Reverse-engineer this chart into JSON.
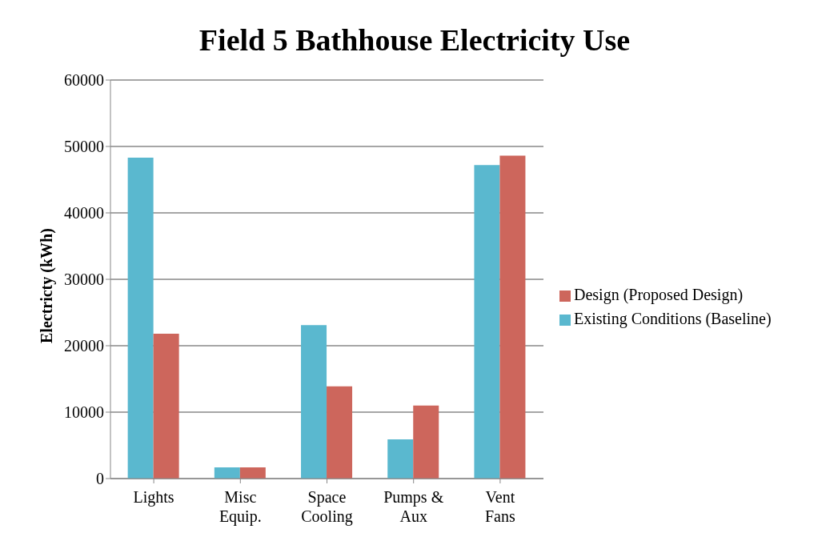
{
  "chart_data": {
    "type": "bar",
    "title": "Field 5 Bathhouse Electricity Use",
    "ylabel": "Electricty (kWh)",
    "categories": [
      "Lights",
      "Misc Equip.",
      "Space Cooling",
      "Pumps & Aux",
      "Vent Fans"
    ],
    "series": [
      {
        "name": "Existing Conditions (Baseline)",
        "color": "#5ab8cf",
        "values": [
          48300,
          1700,
          23100,
          5900,
          47200
        ]
      },
      {
        "name": "Design (Proposed Design)",
        "color": "#cd665c",
        "values": [
          21800,
          1700,
          13900,
          11000,
          48600
        ]
      }
    ],
    "ylim": [
      0,
      60000
    ],
    "yticks": [
      0,
      10000,
      20000,
      30000,
      40000,
      50000,
      60000
    ],
    "grid": "y",
    "legend": "right"
  }
}
